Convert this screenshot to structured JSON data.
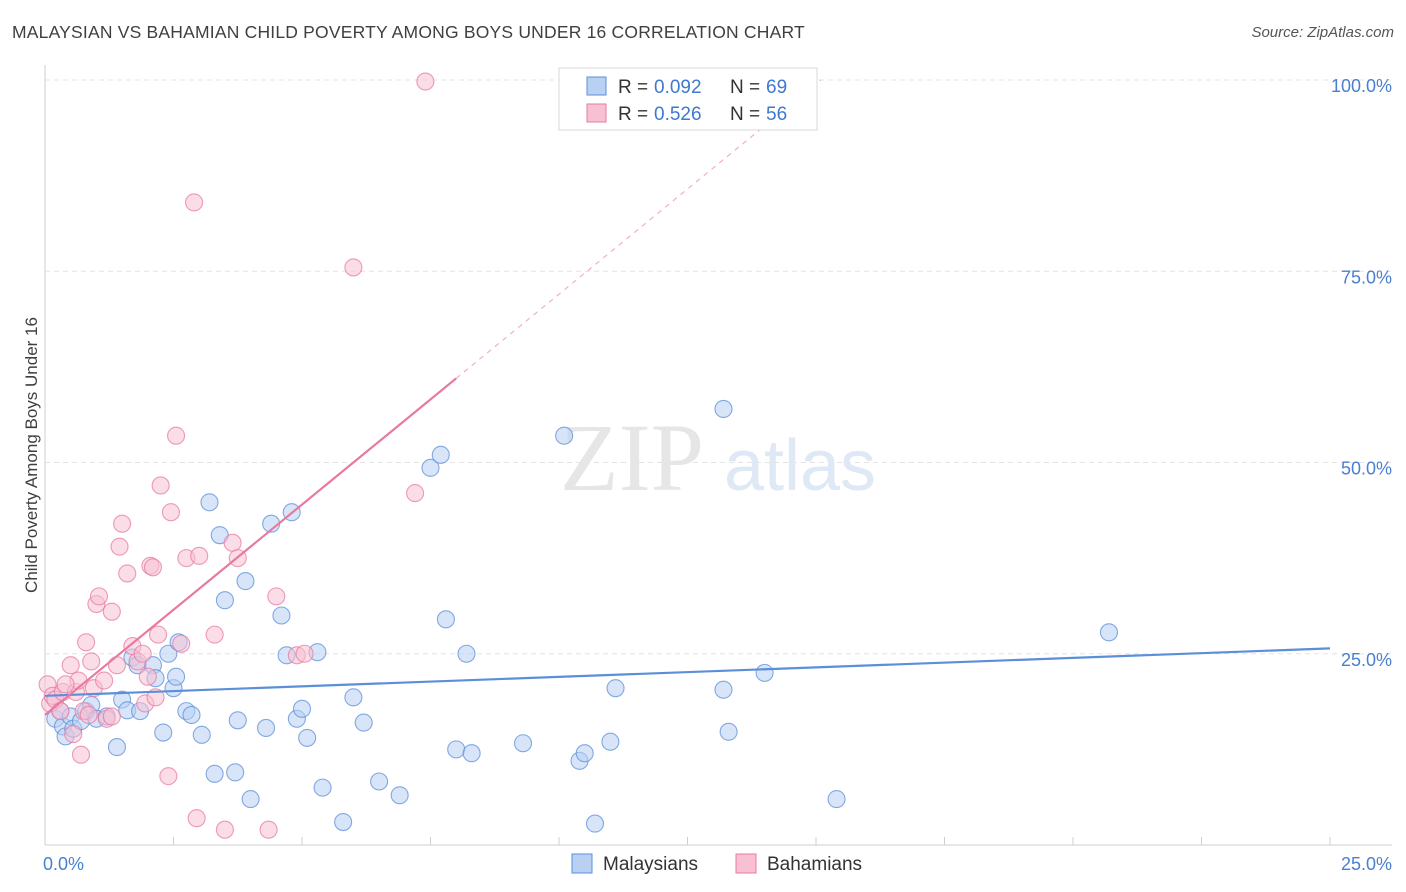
{
  "title": "MALAYSIAN VS BAHAMIAN CHILD POVERTY AMONG BOYS UNDER 16 CORRELATION CHART",
  "source": "Source: ZipAtlas.com",
  "watermark": {
    "zip": "ZIP",
    "atlas": "atlas"
  },
  "legend_stats": [
    {
      "r_label": "R =",
      "r_value": "0.092",
      "n_label": "N =",
      "n_value": "69",
      "color": "#5b8fd9",
      "fill": "#b8d0f2"
    },
    {
      "r_label": "R =",
      "r_value": "0.526",
      "n_label": "N =",
      "n_value": "56",
      "color": "#e87aa0",
      "fill": "#f7c1d3"
    }
  ],
  "chart_data": {
    "type": "scatter",
    "title": "MALAYSIAN VS BAHAMIAN CHILD POVERTY AMONG BOYS UNDER 16 CORRELATION CHART",
    "xlabel": "",
    "ylabel": "Child Poverty Among Boys Under 16",
    "xlim": [
      0,
      25
    ],
    "ylim": [
      0,
      100
    ],
    "x_tick_labels": [
      {
        "value": 0,
        "label": "0.0%"
      },
      {
        "value": 25,
        "label": "25.0%"
      }
    ],
    "y_tick_labels": [
      {
        "value": 25,
        "label": "25.0%"
      },
      {
        "value": 50,
        "label": "50.0%"
      },
      {
        "value": 75,
        "label": "75.0%"
      },
      {
        "value": 100,
        "label": "100.0%"
      }
    ],
    "grid": true,
    "legend_position": "top-center",
    "series": [
      {
        "name": "Malaysians",
        "color": "#5b8fd9",
        "fill": "#b8d0f2",
        "trend": {
          "x0": 0,
          "y0": 19.5,
          "x1": 25,
          "y1": 25.7,
          "extend": false
        },
        "points": [
          [
            0.2,
            16.5
          ],
          [
            0.3,
            17.5
          ],
          [
            0.35,
            15.5
          ],
          [
            0.4,
            14.2
          ],
          [
            0.5,
            16.8
          ],
          [
            0.55,
            15.2
          ],
          [
            0.7,
            16.2
          ],
          [
            0.8,
            17.5
          ],
          [
            0.9,
            18.3
          ],
          [
            1.0,
            16.5
          ],
          [
            1.2,
            16.8
          ],
          [
            1.4,
            12.8
          ],
          [
            1.5,
            19.0
          ],
          [
            1.6,
            17.6
          ],
          [
            1.7,
            24.5
          ],
          [
            1.8,
            23.5
          ],
          [
            1.85,
            17.5
          ],
          [
            2.1,
            23.5
          ],
          [
            2.15,
            21.8
          ],
          [
            2.3,
            14.7
          ],
          [
            2.4,
            25.0
          ],
          [
            2.5,
            20.5
          ],
          [
            2.55,
            22.0
          ],
          [
            2.6,
            26.5
          ],
          [
            2.75,
            17.5
          ],
          [
            2.85,
            17.0
          ],
          [
            3.05,
            14.4
          ],
          [
            3.2,
            44.8
          ],
          [
            3.3,
            9.3
          ],
          [
            3.4,
            40.5
          ],
          [
            3.5,
            32.0
          ],
          [
            3.7,
            9.5
          ],
          [
            3.75,
            16.3
          ],
          [
            3.9,
            34.5
          ],
          [
            4.0,
            6.0
          ],
          [
            4.3,
            15.3
          ],
          [
            4.4,
            42.0
          ],
          [
            4.6,
            30.0
          ],
          [
            4.7,
            24.8
          ],
          [
            4.8,
            43.5
          ],
          [
            4.9,
            16.5
          ],
          [
            5.0,
            17.8
          ],
          [
            5.1,
            14.0
          ],
          [
            5.3,
            25.2
          ],
          [
            5.4,
            7.5
          ],
          [
            5.8,
            3.0
          ],
          [
            6.0,
            19.3
          ],
          [
            6.2,
            16.0
          ],
          [
            6.5,
            8.3
          ],
          [
            6.9,
            6.5
          ],
          [
            7.5,
            49.3
          ],
          [
            7.7,
            51.0
          ],
          [
            7.8,
            29.5
          ],
          [
            8.0,
            12.5
          ],
          [
            8.2,
            25.0
          ],
          [
            8.3,
            12.0
          ],
          [
            9.3,
            13.3
          ],
          [
            10.1,
            53.5
          ],
          [
            10.4,
            11.0
          ],
          [
            10.5,
            12.0
          ],
          [
            10.7,
            2.8
          ],
          [
            11.0,
            13.5
          ],
          [
            11.1,
            20.5
          ],
          [
            13.2,
            57.0
          ],
          [
            13.2,
            20.3
          ],
          [
            13.3,
            14.8
          ],
          [
            14.0,
            22.5
          ],
          [
            15.4,
            6.0
          ],
          [
            20.7,
            27.8
          ]
        ]
      },
      {
        "name": "Bahamians",
        "color": "#e87aa0",
        "fill": "#f7c1d3",
        "trend": {
          "x0": 0,
          "y0": 17.0,
          "x1": 8.0,
          "y1": 61.0,
          "extend": true
        },
        "points": [
          [
            0.05,
            21.0
          ],
          [
            0.1,
            18.5
          ],
          [
            0.15,
            19.5
          ],
          [
            0.2,
            19.0
          ],
          [
            0.3,
            17.5
          ],
          [
            0.35,
            20.0
          ],
          [
            0.5,
            23.5
          ],
          [
            0.55,
            14.5
          ],
          [
            0.6,
            20.0
          ],
          [
            0.65,
            21.5
          ],
          [
            0.7,
            11.8
          ],
          [
            0.75,
            17.5
          ],
          [
            0.8,
            26.5
          ],
          [
            0.9,
            24.0
          ],
          [
            0.95,
            20.5
          ],
          [
            1.0,
            31.5
          ],
          [
            1.05,
            32.5
          ],
          [
            1.2,
            16.5
          ],
          [
            1.3,
            16.8
          ],
          [
            1.3,
            30.5
          ],
          [
            1.4,
            23.5
          ],
          [
            1.45,
            39.0
          ],
          [
            1.5,
            42.0
          ],
          [
            1.6,
            35.5
          ],
          [
            1.7,
            26.0
          ],
          [
            1.8,
            24.0
          ],
          [
            1.9,
            25.0
          ],
          [
            1.95,
            18.5
          ],
          [
            2.0,
            22.0
          ],
          [
            2.05,
            36.5
          ],
          [
            2.1,
            36.3
          ],
          [
            2.2,
            27.5
          ],
          [
            2.25,
            47.0
          ],
          [
            2.4,
            9.0
          ],
          [
            2.45,
            43.5
          ],
          [
            2.55,
            53.5
          ],
          [
            2.65,
            26.3
          ],
          [
            2.75,
            37.5
          ],
          [
            2.9,
            84.0
          ],
          [
            2.95,
            3.5
          ],
          [
            3.0,
            37.8
          ],
          [
            3.3,
            27.5
          ],
          [
            3.5,
            2.0
          ],
          [
            3.65,
            39.5
          ],
          [
            3.75,
            37.5
          ],
          [
            4.35,
            2.0
          ],
          [
            4.5,
            32.5
          ],
          [
            4.9,
            24.8
          ],
          [
            5.05,
            25.0
          ],
          [
            6.0,
            75.5
          ],
          [
            7.2,
            46.0
          ],
          [
            7.4,
            99.8
          ],
          [
            0.4,
            21.0
          ],
          [
            1.15,
            21.5
          ],
          [
            2.15,
            19.3
          ],
          [
            0.85,
            17.0
          ]
        ]
      }
    ]
  }
}
